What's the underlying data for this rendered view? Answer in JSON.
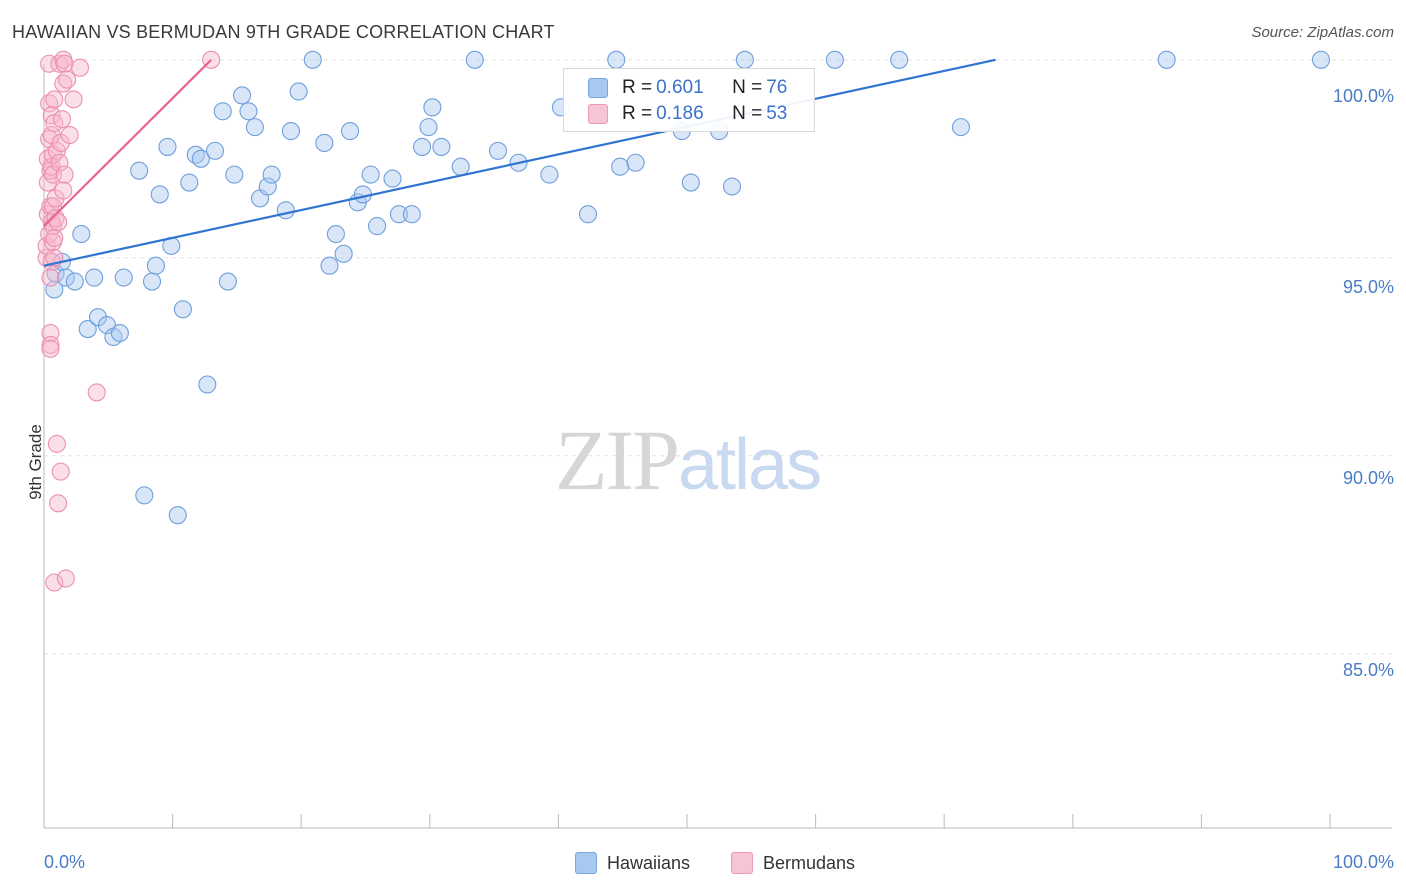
{
  "title": "HAWAIIAN VS BERMUDAN 9TH GRADE CORRELATION CHART",
  "source": "Source: ZipAtlas.com",
  "watermark": {
    "part1": "ZIP",
    "part2": "atlas"
  },
  "legend": {
    "rows": [
      {
        "r_label": "R = ",
        "r_value": "0.601",
        "n_label": "N = ",
        "n_value": "76",
        "color": "#a8c8f0"
      },
      {
        "r_label": "R = ",
        "r_value": "0.186",
        "n_label": "N = ",
        "n_value": "53",
        "color": "#f7b8cc"
      }
    ]
  },
  "bottom_legend": [
    {
      "label": "Hawaiians",
      "color": "#a8c8f0"
    },
    {
      "label": "Bermudans",
      "color": "#f7b8cc"
    }
  ],
  "chart_data": {
    "type": "scatter",
    "title": "HAWAIIAN VS BERMUDAN 9TH GRADE CORRELATION CHART",
    "xlabel": "",
    "ylabel": "9th Grade",
    "xlim": [
      0,
      100
    ],
    "ylim": [
      80.6,
      100.5
    ],
    "x_tick_labels": [
      "0.0%",
      "100.0%"
    ],
    "y_ticks": [
      85,
      90,
      95,
      100
    ],
    "y_tick_labels": [
      "85.0%",
      "90.0%",
      "95.0%",
      "100.0%"
    ],
    "series": [
      {
        "name": "Hawaiians",
        "color": "#6f9fdc",
        "fill": "rgba(168,200,240,0.45)",
        "trend": {
          "x": [
            0,
            74
          ],
          "y": [
            94.8,
            100.0
          ],
          "color": "#2f74d0"
        },
        "points": [
          [
            0.8,
            94.2
          ],
          [
            0.9,
            94.6
          ],
          [
            1.4,
            94.9
          ],
          [
            1.7,
            94.5
          ],
          [
            2.4,
            94.4
          ],
          [
            2.9,
            95.6
          ],
          [
            3.4,
            93.2
          ],
          [
            3.9,
            94.5
          ],
          [
            4.2,
            93.5
          ],
          [
            4.9,
            93.3
          ],
          [
            5.4,
            93.0
          ],
          [
            5.9,
            93.1
          ],
          [
            6.2,
            94.5
          ],
          [
            7.4,
            97.2
          ],
          [
            7.8,
            89.0
          ],
          [
            8.4,
            94.4
          ],
          [
            8.7,
            94.8
          ],
          [
            9.0,
            96.6
          ],
          [
            9.6,
            97.8
          ],
          [
            9.9,
            95.3
          ],
          [
            10.4,
            88.5
          ],
          [
            10.8,
            93.7
          ],
          [
            11.3,
            96.9
          ],
          [
            11.8,
            97.6
          ],
          [
            12.2,
            97.5
          ],
          [
            12.7,
            91.8
          ],
          [
            13.3,
            97.7
          ],
          [
            13.9,
            98.7
          ],
          [
            14.3,
            94.4
          ],
          [
            14.8,
            97.1
          ],
          [
            15.4,
            99.1
          ],
          [
            15.9,
            98.7
          ],
          [
            16.4,
            98.3
          ],
          [
            16.8,
            96.5
          ],
          [
            17.4,
            96.8
          ],
          [
            17.7,
            97.1
          ],
          [
            18.8,
            96.2
          ],
          [
            19.2,
            98.2
          ],
          [
            19.8,
            99.2
          ],
          [
            20.9,
            100.0
          ],
          [
            21.8,
            97.9
          ],
          [
            22.2,
            94.8
          ],
          [
            22.7,
            95.6
          ],
          [
            23.3,
            95.1
          ],
          [
            23.8,
            98.2
          ],
          [
            24.4,
            96.4
          ],
          [
            24.8,
            96.6
          ],
          [
            25.4,
            97.1
          ],
          [
            25.9,
            95.8
          ],
          [
            27.1,
            97.0
          ],
          [
            27.6,
            96.1
          ],
          [
            28.6,
            96.1
          ],
          [
            29.4,
            97.8
          ],
          [
            29.9,
            98.3
          ],
          [
            30.2,
            98.8
          ],
          [
            30.9,
            97.8
          ],
          [
            32.4,
            97.3
          ],
          [
            33.5,
            100.0
          ],
          [
            35.3,
            97.7
          ],
          [
            36.9,
            97.4
          ],
          [
            39.3,
            97.1
          ],
          [
            40.2,
            98.8
          ],
          [
            42.3,
            96.1
          ],
          [
            44.5,
            100.0
          ],
          [
            44.8,
            97.3
          ],
          [
            46.0,
            97.4
          ],
          [
            49.6,
            98.2
          ],
          [
            50.3,
            96.9
          ],
          [
            52.5,
            98.2
          ],
          [
            53.5,
            96.8
          ],
          [
            54.5,
            100.0
          ],
          [
            61.5,
            100.0
          ],
          [
            66.5,
            100.0
          ],
          [
            71.3,
            98.3
          ],
          [
            87.3,
            100.0
          ],
          [
            99.3,
            100.0
          ]
        ]
      },
      {
        "name": "Bermudans",
        "color": "#ec8fb0",
        "fill": "rgba(247,184,204,0.45)",
        "trend": {
          "x": [
            0,
            13
          ],
          "y": [
            95.8,
            100.0
          ],
          "color": "#e8648e"
        },
        "points": [
          [
            0.2,
            95.0
          ],
          [
            0.2,
            95.3
          ],
          [
            0.3,
            96.1
          ],
          [
            0.3,
            96.9
          ],
          [
            0.3,
            97.5
          ],
          [
            0.4,
            98.0
          ],
          [
            0.4,
            98.9
          ],
          [
            0.4,
            99.9
          ],
          [
            0.4,
            95.6
          ],
          [
            0.5,
            96.3
          ],
          [
            0.5,
            97.2
          ],
          [
            0.5,
            94.5
          ],
          [
            0.5,
            93.1
          ],
          [
            0.5,
            92.8
          ],
          [
            0.5,
            92.7
          ],
          [
            0.6,
            95.9
          ],
          [
            0.6,
            97.3
          ],
          [
            0.6,
            98.1
          ],
          [
            0.6,
            98.6
          ],
          [
            0.6,
            94.9
          ],
          [
            0.7,
            95.4
          ],
          [
            0.7,
            95.8
          ],
          [
            0.7,
            96.3
          ],
          [
            0.7,
            97.1
          ],
          [
            0.7,
            97.6
          ],
          [
            0.8,
            98.4
          ],
          [
            0.8,
            99.0
          ],
          [
            0.8,
            86.8
          ],
          [
            0.8,
            95.0
          ],
          [
            0.8,
            95.5
          ],
          [
            0.9,
            96.5
          ],
          [
            0.9,
            96.0
          ],
          [
            1.0,
            97.7
          ],
          [
            1.0,
            90.3
          ],
          [
            1.1,
            88.8
          ],
          [
            1.2,
            97.4
          ],
          [
            1.2,
            99.9
          ],
          [
            1.3,
            97.9
          ],
          [
            1.3,
            89.6
          ],
          [
            1.4,
            98.5
          ],
          [
            1.5,
            100.0
          ],
          [
            1.5,
            99.4
          ],
          [
            1.5,
            96.7
          ],
          [
            1.6,
            97.1
          ],
          [
            1.6,
            99.9
          ],
          [
            1.7,
            86.9
          ],
          [
            1.8,
            99.5
          ],
          [
            2.0,
            98.1
          ],
          [
            2.3,
            99.0
          ],
          [
            2.8,
            99.8
          ],
          [
            4.1,
            91.6
          ],
          [
            13.0,
            100.0
          ],
          [
            1.1,
            95.9
          ]
        ]
      }
    ]
  }
}
